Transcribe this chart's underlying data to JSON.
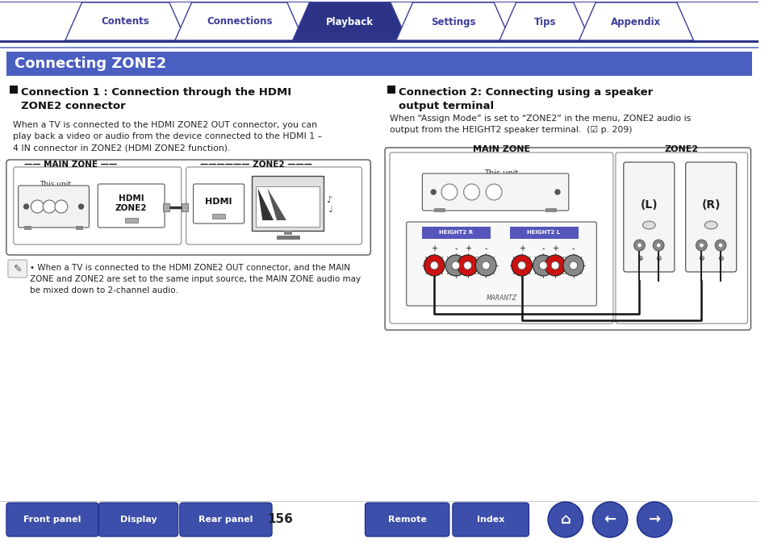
{
  "page_bg": "#ffffff",
  "top_bar_color": "#2d3487",
  "tab_labels": [
    "Contents",
    "Connections",
    "Playback",
    "Settings",
    "Tips",
    "Appendix"
  ],
  "active_tab": 2,
  "tab_active_color": "#2d3487",
  "tab_inactive_color": "#ffffff",
  "tab_border_color": "#3d3d9a",
  "title_text": "Connecting ZONE2",
  "title_bg": "#4a5fc1",
  "section1_heading": "Connection 1 : Connection through the HDMI\nZONE2 connector",
  "section2_heading": "Connection 2: Connecting using a speaker\noutput terminal",
  "section1_body": "When a TV is connected to the HDMI ZONE2 OUT connector, you can\nplay back a video or audio from the device connected to the HDMI 1 –\n4 IN connector in ZONE2 (HDMI ZONE2 function).",
  "section2_body": "When “Assign Mode” is set to “ZONE2” in the menu, ZONE2 audio is\noutput from the HEIGHT2 speaker terminal.  (☑︎ p. 209)",
  "note_text": "When a TV is connected to the HDMI ZONE2 OUT connector, and the MAIN\nZONE and ZONE2 are set to the same input source, the MAIN ZONE audio may\nbe mixed down to 2-channel audio.",
  "bottom_buttons": [
    "Front panel",
    "Display",
    "Rear panel",
    "Remote",
    "Index"
  ],
  "page_number": "156",
  "bottom_btn_color": "#3d4faa"
}
